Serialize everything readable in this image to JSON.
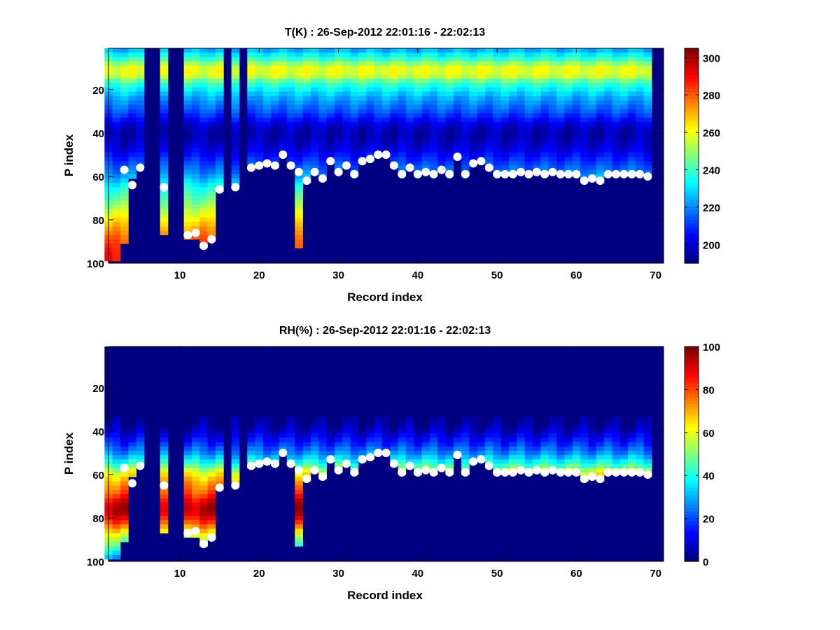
{
  "chart_data": [
    {
      "type": "heatmap",
      "title": "T(K) : 26-Sep-2012 22:01:16 - 22:02:13",
      "xlabel": "Record index",
      "ylabel": "P index",
      "xlim": [
        1,
        71
      ],
      "ylim": [
        1,
        100
      ],
      "y_reversed": true,
      "xticks": [
        10,
        20,
        30,
        40,
        50,
        60,
        70
      ],
      "yticks": [
        20,
        40,
        60,
        80,
        100
      ],
      "colorbar": {
        "min": 190,
        "max": 305,
        "ticks": [
          200,
          220,
          240,
          260,
          280,
          300
        ],
        "colormap": "jet"
      },
      "background_value": 190,
      "missing_records": [
        6,
        7,
        9,
        10,
        16,
        18,
        70
      ],
      "surface_markers": [
        {
          "x": 3,
          "y": 57
        },
        {
          "x": 4,
          "y": 64
        },
        {
          "x": 5,
          "y": 56
        },
        {
          "x": 8,
          "y": 65
        },
        {
          "x": 11,
          "y": 87
        },
        {
          "x": 12,
          "y": 86
        },
        {
          "x": 13,
          "y": 92
        },
        {
          "x": 14,
          "y": 89
        },
        {
          "x": 15,
          "y": 66
        },
        {
          "x": 17,
          "y": 65
        },
        {
          "x": 19,
          "y": 56
        },
        {
          "x": 20,
          "y": 55
        },
        {
          "x": 21,
          "y": 54
        },
        {
          "x": 22,
          "y": 55
        },
        {
          "x": 23,
          "y": 50
        },
        {
          "x": 24,
          "y": 55
        },
        {
          "x": 25,
          "y": 58
        },
        {
          "x": 26,
          "y": 62
        },
        {
          "x": 27,
          "y": 58
        },
        {
          "x": 28,
          "y": 61
        },
        {
          "x": 29,
          "y": 53
        },
        {
          "x": 30,
          "y": 58
        },
        {
          "x": 31,
          "y": 55
        },
        {
          "x": 32,
          "y": 59
        },
        {
          "x": 33,
          "y": 53
        },
        {
          "x": 34,
          "y": 52
        },
        {
          "x": 35,
          "y": 50
        },
        {
          "x": 36,
          "y": 50
        },
        {
          "x": 37,
          "y": 55
        },
        {
          "x": 38,
          "y": 59
        },
        {
          "x": 39,
          "y": 56
        },
        {
          "x": 40,
          "y": 59
        },
        {
          "x": 41,
          "y": 58
        },
        {
          "x": 42,
          "y": 59
        },
        {
          "x": 43,
          "y": 57
        },
        {
          "x": 44,
          "y": 59
        },
        {
          "x": 45,
          "y": 51
        },
        {
          "x": 46,
          "y": 59
        },
        {
          "x": 47,
          "y": 54
        },
        {
          "x": 48,
          "y": 53
        },
        {
          "x": 49,
          "y": 56
        },
        {
          "x": 50,
          "y": 59
        },
        {
          "x": 51,
          "y": 59
        },
        {
          "x": 52,
          "y": 59
        },
        {
          "x": 53,
          "y": 58
        },
        {
          "x": 54,
          "y": 59
        },
        {
          "x": 55,
          "y": 58
        },
        {
          "x": 56,
          "y": 59
        },
        {
          "x": 57,
          "y": 58
        },
        {
          "x": 58,
          "y": 59
        },
        {
          "x": 59,
          "y": 59
        },
        {
          "x": 60,
          "y": 59
        },
        {
          "x": 61,
          "y": 62
        },
        {
          "x": 62,
          "y": 61
        },
        {
          "x": 63,
          "y": 62
        },
        {
          "x": 64,
          "y": 59
        },
        {
          "x": 65,
          "y": 59
        },
        {
          "x": 66,
          "y": 59
        },
        {
          "x": 67,
          "y": 59
        },
        {
          "x": 68,
          "y": 59
        },
        {
          "x": 69,
          "y": 60
        }
      ],
      "columns": [
        {
          "x": 1,
          "bottom": 98
        },
        {
          "x": 2,
          "bottom": 98
        },
        {
          "x": 3,
          "bottom": 90
        },
        {
          "x": 4,
          "bottom": 60
        },
        {
          "x": 5,
          "bottom": 55
        },
        {
          "x": 8,
          "bottom": 86
        },
        {
          "x": 11,
          "bottom": 88
        },
        {
          "x": 12,
          "bottom": 88
        },
        {
          "x": 13,
          "bottom": 92
        },
        {
          "x": 14,
          "bottom": 89
        },
        {
          "x": 15,
          "bottom": 66
        },
        {
          "x": 17,
          "bottom": 64
        },
        {
          "x": 25,
          "bottom": 92
        }
      ],
      "profile": [
        [
          1,
          225
        ],
        [
          5,
          240
        ],
        [
          8,
          255
        ],
        [
          10,
          262
        ],
        [
          13,
          255
        ],
        [
          16,
          240
        ],
        [
          22,
          225
        ],
        [
          30,
          212
        ],
        [
          36,
          198
        ],
        [
          40,
          195
        ],
        [
          46,
          200
        ],
        [
          52,
          210
        ],
        [
          58,
          220
        ],
        [
          64,
          235
        ],
        [
          70,
          245
        ],
        [
          76,
          258
        ],
        [
          82,
          270
        ],
        [
          88,
          280
        ],
        [
          94,
          286
        ],
        [
          100,
          290
        ]
      ]
    },
    {
      "type": "heatmap",
      "title": "RH(%) : 26-Sep-2012 22:01:16 - 22:02:13",
      "xlabel": "Record index",
      "ylabel": "P index",
      "xlim": [
        1,
        71
      ],
      "ylim": [
        1,
        100
      ],
      "y_reversed": true,
      "xticks": [
        10,
        20,
        30,
        40,
        50,
        60,
        70
      ],
      "yticks": [
        20,
        40,
        60,
        80,
        100
      ],
      "colorbar": {
        "min": 0,
        "max": 100,
        "ticks": [
          0,
          20,
          40,
          60,
          80,
          100
        ],
        "colormap": "jet"
      },
      "background_value": 0,
      "surface_markers_same_as_panel": 1,
      "profile": [
        [
          1,
          0
        ],
        [
          33,
          0
        ],
        [
          38,
          5
        ],
        [
          44,
          15
        ],
        [
          50,
          28
        ],
        [
          55,
          45
        ],
        [
          58,
          60
        ],
        [
          62,
          70
        ],
        [
          68,
          80
        ],
        [
          72,
          92
        ],
        [
          76,
          95
        ],
        [
          80,
          85
        ],
        [
          84,
          70
        ],
        [
          88,
          55
        ],
        [
          92,
          45
        ],
        [
          96,
          30
        ],
        [
          100,
          20
        ]
      ]
    }
  ]
}
